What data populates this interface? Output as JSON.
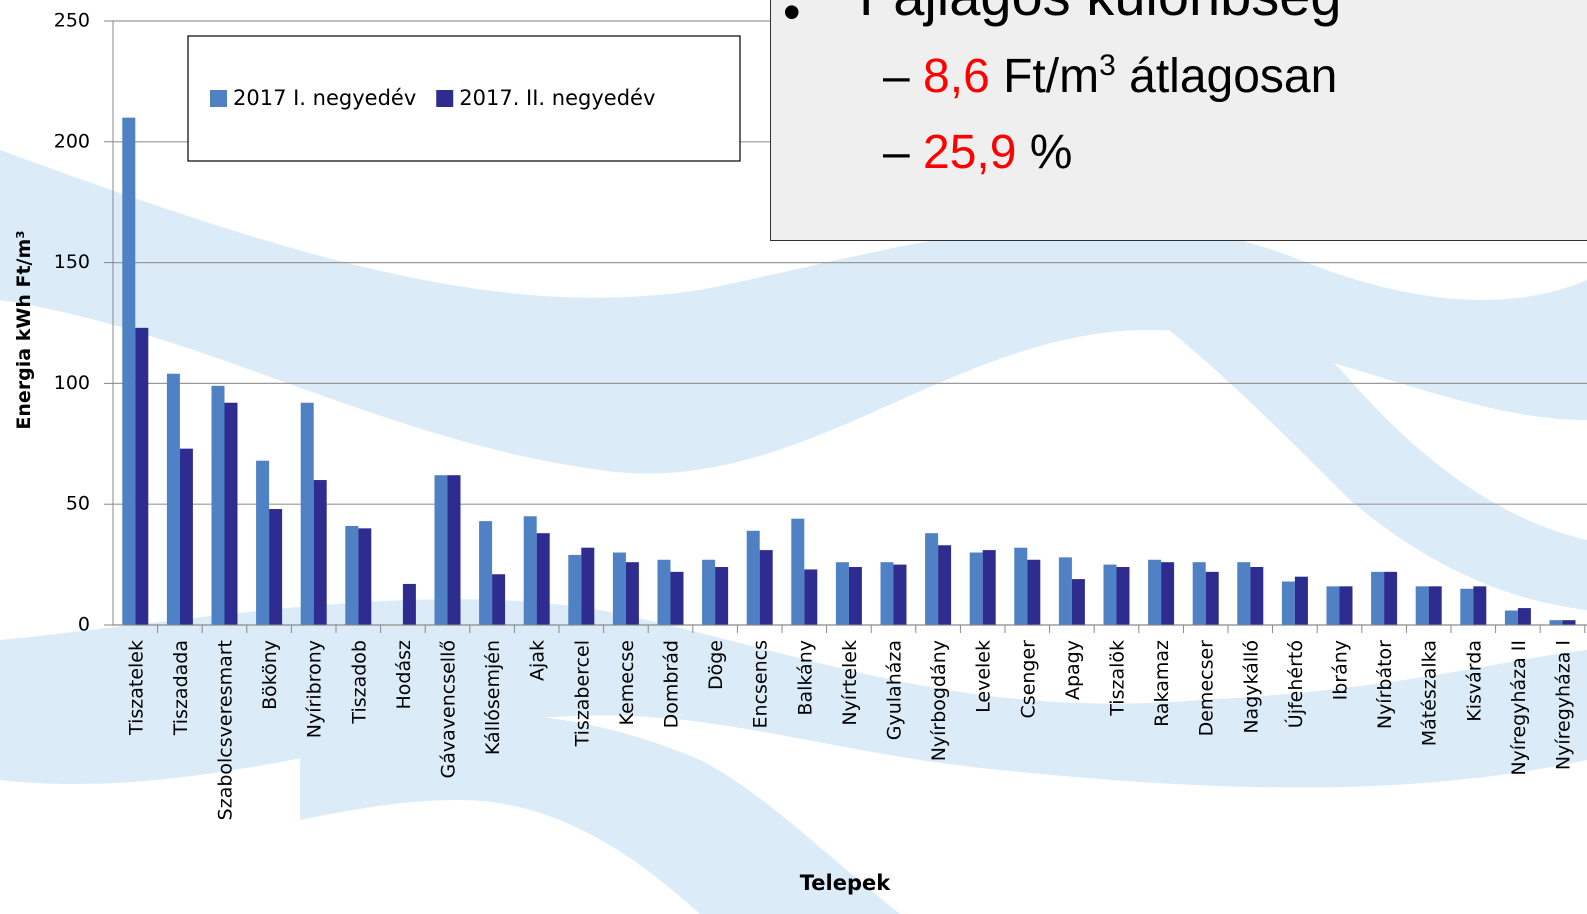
{
  "chart_data": {
    "type": "bar",
    "y_axis_label": "Energia kWh Ft/m³",
    "x_axis_label": "Telepek",
    "categories": [
      "Tiszatelek",
      "Tiszadada",
      "Szabolcsveresmart",
      "Bököny",
      "Nyíribrony",
      "Tiszadob",
      "Hodász",
      "Gávavencsellő",
      "Kállósemjén",
      "Ajak",
      "Tiszabercel",
      "Kemecse",
      "Dombrád",
      "Döge",
      "Encsencs",
      "Balkány",
      "Nyírtelek",
      "Gyulaháza",
      "Nyírbogdány",
      "Levelek",
      "Csenger",
      "Apagy",
      "Tiszalök",
      "Rakamaz",
      "Demecser",
      "Nagykálló",
      "Újfehértó",
      "Ibrány",
      "Nyírbátor",
      "Mátészalka",
      "Kisvárda",
      "Nyíregyháza II",
      "Nyíregyháza I"
    ],
    "series": [
      {
        "name": "2017 I. negyedév",
        "color": "#4f81c4",
        "values": [
          210,
          104,
          99,
          68,
          92,
          41,
          null,
          62,
          43,
          45,
          29,
          30,
          27,
          27,
          39,
          44,
          26,
          26,
          38,
          30,
          32,
          28,
          25,
          27,
          26,
          26,
          18,
          16,
          22,
          16,
          15,
          6,
          2
        ]
      },
      {
        "name": "2017. II. negyedév",
        "color": "#2e2d8f",
        "values": [
          123,
          73,
          92,
          48,
          60,
          40,
          17,
          62,
          21,
          38,
          32,
          26,
          22,
          24,
          31,
          23,
          24,
          25,
          33,
          31,
          27,
          19,
          24,
          26,
          22,
          24,
          20,
          16,
          22,
          16,
          16,
          7,
          2
        ]
      }
    ],
    "ylim": [
      0,
      250
    ],
    "yticks": [
      0,
      50,
      100,
      150,
      200,
      250
    ],
    "grid": true
  },
  "overlay": {
    "heading": "Fajlagos különbség",
    "items": [
      {
        "highlight": "8,6",
        "unit": "Ft/m",
        "sup": "3",
        "rest": "átlagosan"
      },
      {
        "highlight": "25,9",
        "rest": "%"
      }
    ]
  }
}
